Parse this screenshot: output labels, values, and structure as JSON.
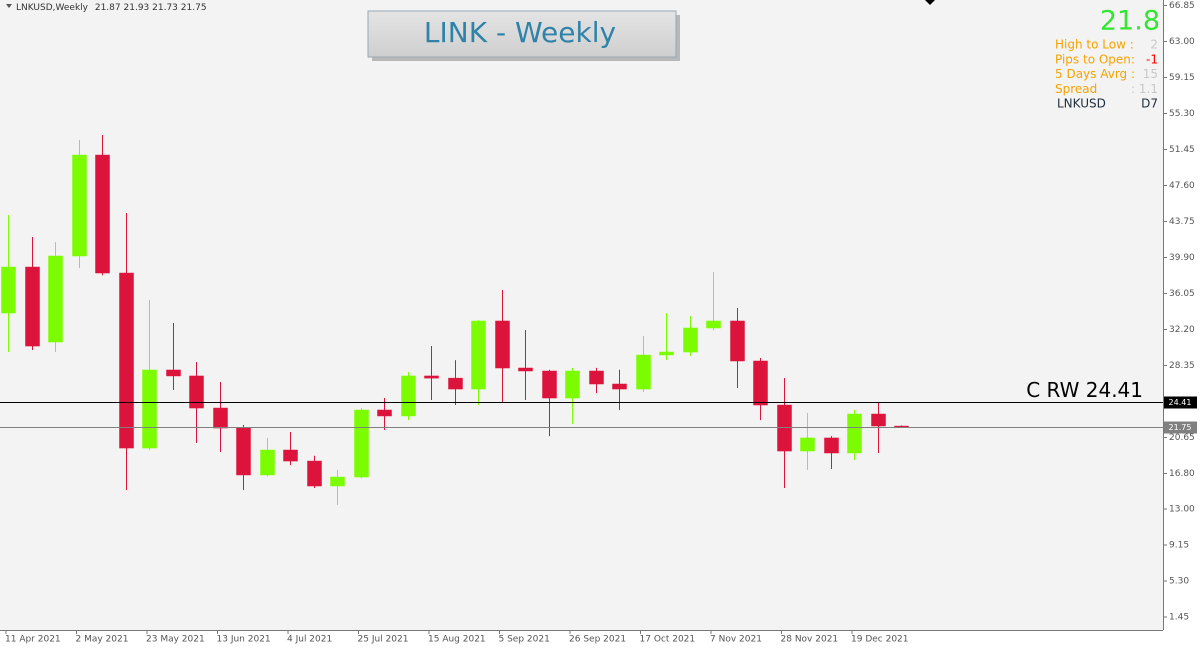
{
  "chart_data": {
    "type": "candlestick",
    "symbol": "LNKUSD,Weekly",
    "title": "LINK -  Weekly",
    "categories": [
      "11 Apr 2021",
      null,
      null,
      "2 May 2021",
      null,
      null,
      "23 May 2021",
      null,
      null,
      "13 Jun 2021",
      null,
      null,
      "4 Jul 2021",
      null,
      null,
      "25 Jul 2021",
      null,
      null,
      "15 Aug 2021",
      null,
      null,
      "5 Sep 2021",
      null,
      null,
      "26 Sep 2021",
      null,
      null,
      "17 Oct 2021",
      null,
      null,
      "7 Nov 2021",
      null,
      null,
      "28 Nov 2021",
      null,
      null,
      "19 Dec 2021",
      null,
      null
    ],
    "open": [
      33.96,
      38.88,
      30.86,
      40.06,
      50.86,
      38.24,
      19.52,
      27.87,
      27.23,
      23.8,
      21.66,
      16.64,
      19.31,
      18.13,
      15.46,
      16.42,
      23.59,
      22.95,
      27.23,
      27.0,
      25.83,
      33.11,
      28.08,
      27.76,
      24.87,
      27.76,
      26.37,
      25.83,
      29.47,
      29.79,
      32.36,
      33.11,
      28.83,
      24.12,
      19.2,
      20.6,
      18.99,
      23.16,
      21.87
    ],
    "high": [
      44.44,
      42.09,
      41.56,
      52.46,
      53.0,
      44.66,
      35.35,
      32.89,
      28.72,
      26.58,
      22.0,
      20.6,
      21.23,
      18.7,
      17.17,
      23.8,
      24.87,
      27.65,
      30.43,
      28.93,
      33.2,
      36.42,
      32.15,
      27.9,
      28.1,
      28.1,
      27.9,
      31.5,
      33.96,
      33.64,
      38.34,
      34.5,
      29.15,
      27.01,
      23.27,
      20.8,
      23.6,
      24.34,
      21.93
    ],
    "low": [
      29.79,
      30.0,
      29.79,
      38.77,
      38.0,
      15.03,
      19.3,
      25.73,
      20.06,
      19.1,
      15.03,
      16.5,
      17.7,
      15.25,
      13.43,
      16.3,
      21.45,
      22.5,
      24.66,
      24.12,
      24.12,
      24.45,
      24.66,
      20.8,
      22.1,
      25.4,
      23.59,
      25.5,
      28.93,
      29.36,
      32.1,
      25.94,
      22.5,
      15.25,
      17.17,
      17.28,
      18.24,
      18.99,
      21.73
    ],
    "close": [
      38.88,
      30.43,
      40.06,
      50.86,
      38.24,
      19.52,
      27.87,
      27.23,
      23.8,
      21.66,
      16.64,
      19.31,
      18.13,
      15.46,
      16.42,
      23.59,
      22.95,
      27.23,
      27.0,
      25.83,
      33.11,
      28.08,
      27.76,
      24.87,
      27.76,
      26.37,
      25.83,
      29.47,
      29.79,
      32.36,
      33.11,
      28.83,
      24.12,
      19.2,
      20.6,
      18.99,
      23.16,
      21.88,
      21.75
    ],
    "up_color": "#7cfc00",
    "down_color": "#dc143c",
    "ylim": [
      0.06,
      67.44
    ],
    "yticks": [
      66.85,
      {
        "value": 63,
        "label": "63.00"
      },
      59.15,
      {
        "value": 55.3,
        "label": "55.30"
      },
      51.45,
      {
        "value": 47.6,
        "label": "47.60"
      },
      43.75,
      {
        "value": 39.9,
        "label": "39.90"
      },
      36.05,
      {
        "value": 32.2,
        "label": "32.20"
      },
      28.35,
      20.65,
      {
        "value": 16.8,
        "label": "16.80"
      },
      {
        "value": 13,
        "label": "13.00"
      },
      9.15,
      {
        "value": 5.3,
        "label": "5.30"
      },
      1.45
    ],
    "hlines": [
      {
        "value": 24.41,
        "label": "C RW 24.41",
        "color": "#000000"
      },
      {
        "value": 21.75,
        "color": "#808080"
      }
    ],
    "info_panel": {
      "price": "21.8",
      "rows": [
        {
          "label": "High to Low :",
          "value": "2"
        },
        {
          "label": "Pips to Open:",
          "value": "-1"
        },
        {
          "label": "5 Days Avrg :",
          "value": "15"
        },
        {
          "label": "Spread",
          "value": ": 1.1"
        }
      ],
      "symbol": "LNKUSD",
      "period": "D7"
    }
  }
}
